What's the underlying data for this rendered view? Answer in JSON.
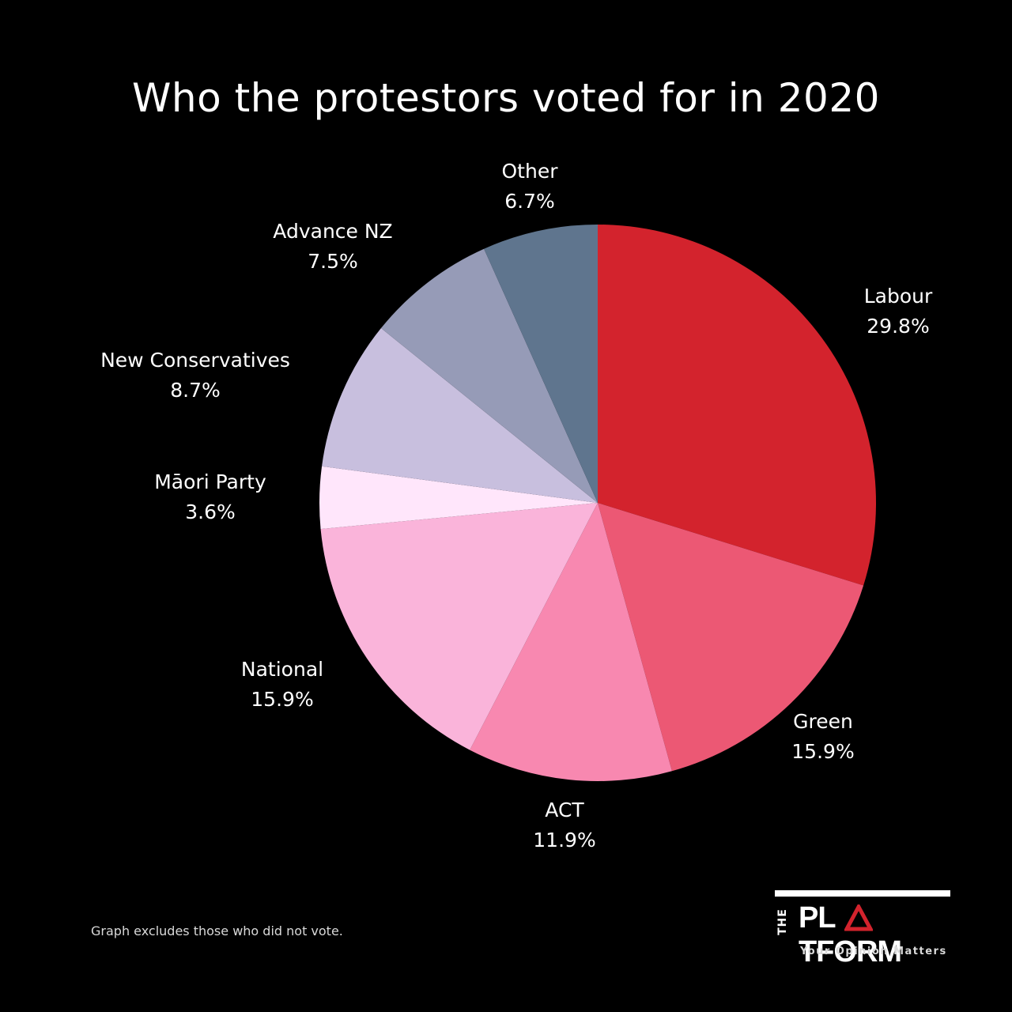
{
  "chart_data": {
    "type": "pie",
    "title": "Who the protestors voted for in 2020",
    "slices": [
      {
        "label": "Labour",
        "value": 29.8,
        "value_label": "29.8%",
        "color": "#d3232d"
      },
      {
        "label": "Green",
        "value": 15.9,
        "value_label": "15.9%",
        "color": "#ec5874"
      },
      {
        "label": "ACT",
        "value": 11.9,
        "value_label": "11.9%",
        "color": "#f888b0"
      },
      {
        "label": "National",
        "value": 15.9,
        "value_label": "15.9%",
        "color": "#fab4da"
      },
      {
        "label": "Māori Party",
        "value": 3.6,
        "value_label": "3.6%",
        "color": "#ffe6fb"
      },
      {
        "label": "New Conservatives",
        "value": 8.7,
        "value_label": "8.7%",
        "color": "#c8bfde"
      },
      {
        "label": "Advance NZ",
        "value": 7.5,
        "value_label": "7.5%",
        "color": "#969bb7"
      },
      {
        "label": "Other",
        "value": 6.7,
        "value_label": "6.7%",
        "color": "#5f758e"
      }
    ],
    "start": "12 o'clock",
    "direction": "clockwise"
  },
  "footnote": "Graph excludes those who did not vote.",
  "brand": {
    "prefix": "THE",
    "name_part1": "PL",
    "name_part2": "TFORM",
    "tagline": "Your Opinion Matters",
    "accent_color": "#d3232d"
  }
}
